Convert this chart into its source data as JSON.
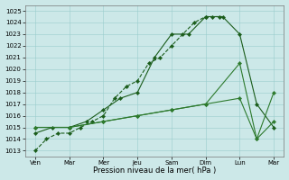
{
  "ylim": [
    1012.5,
    1025.5
  ],
  "yticks": [
    1013,
    1014,
    1015,
    1016,
    1017,
    1018,
    1019,
    1020,
    1021,
    1022,
    1023,
    1024,
    1025
  ],
  "xlim": [
    -0.3,
    7.3
  ],
  "x_tick_positions": [
    0,
    1,
    2,
    3,
    4,
    5,
    6,
    7
  ],
  "x_tick_labels": [
    "Ven",
    "Mar",
    "Mer",
    "Jeu",
    "Sam",
    "Dim",
    "Lun",
    "Mar"
  ],
  "xlabel": "Pression niveau de la mer( hPa )",
  "bg_color": "#cce8e8",
  "grid_color": "#99cccc",
  "line_color_dark": "#1a5c1a",
  "line_color_med": "#2d7a2d",
  "line1_x": [
    0,
    0.33,
    0.67,
    1.0,
    1.33,
    1.67,
    2.0,
    2.33,
    2.67,
    3.0,
    3.33,
    3.67,
    4.0,
    4.33,
    4.67,
    5.0,
    5.2,
    5.4
  ],
  "line1_y": [
    1013,
    1014,
    1014.5,
    1014.5,
    1015,
    1015.5,
    1016,
    1017.5,
    1018.5,
    1019,
    1020.5,
    1021,
    1022,
    1023,
    1024,
    1024.5,
    1024.5,
    1024.5
  ],
  "line2_x": [
    0,
    0.5,
    1.0,
    1.5,
    2.0,
    2.5,
    3.0,
    3.5,
    4.0,
    4.5,
    5.0,
    5.5,
    6.0,
    6.5,
    7.0
  ],
  "line2_y": [
    1014.5,
    1015,
    1015,
    1015.5,
    1016.5,
    1017.5,
    1018,
    1021,
    1023,
    1023,
    1024.5,
    1024.5,
    1023,
    1017,
    1015
  ],
  "line3_x": [
    0,
    1,
    2,
    3,
    4,
    5,
    6,
    6.5,
    7.0
  ],
  "line3_y": [
    1015,
    1015,
    1015.5,
    1016,
    1016.5,
    1017,
    1020.5,
    1014,
    1015.5
  ],
  "line4_x": [
    0,
    1,
    2,
    3,
    4,
    5,
    6,
    6.5,
    7.0
  ],
  "line4_y": [
    1015,
    1015,
    1015.5,
    1016,
    1016.5,
    1017,
    1017.5,
    1014,
    1018
  ]
}
